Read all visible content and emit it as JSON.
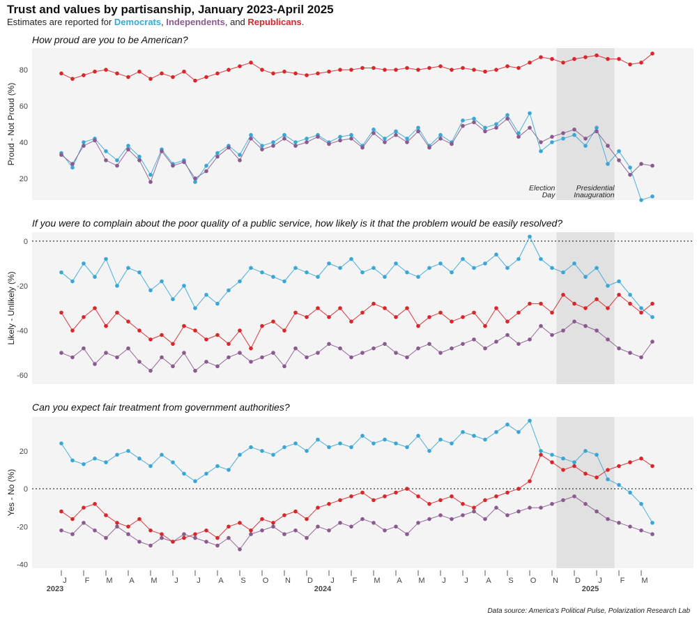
{
  "header": {
    "title": "Trust and values by partisanship, January 2023-April 2025",
    "subtitle_prefix": "Estimates are reported for ",
    "dem_label": "Democrats",
    "sep1": ", ",
    "ind_label": "Independents",
    "sep2": ", and ",
    "rep_label": "Republicans",
    "subtitle_suffix": "."
  },
  "colors": {
    "dem": "#3aa6d6",
    "ind": "#8a5a8e",
    "rep": "#d7262c",
    "panel_bg": "#f4f4f4",
    "shade": "#e1e1e1"
  },
  "source": "Data source: America's Political Pulse, Polarization Research Lab",
  "x_axis": {
    "months": [
      "J",
      "F",
      "M",
      "A",
      "M",
      "J",
      "J",
      "A",
      "S",
      "O",
      "N",
      "D",
      "J",
      "F",
      "M",
      "A",
      "M",
      "J",
      "J",
      "A",
      "S",
      "O",
      "N",
      "D",
      "J",
      "F",
      "M"
    ],
    "years": [
      "2023",
      "2024",
      "2025"
    ],
    "domain": [
      0,
      27.5
    ]
  },
  "annotations": {
    "election_line1": "Election",
    "election_line2": "Day",
    "inauguration_line1": "Presidential",
    "inauguration_line2": "Inauguration"
  },
  "chart_data": [
    {
      "type": "line",
      "title": "How proud are you to be American?",
      "ylabel": "Proud - Not Proud (%)",
      "ylim": [
        8,
        92
      ],
      "yticks": [
        20,
        40,
        60,
        80
      ],
      "zero_line": false,
      "shade_range": [
        22.2,
        24.8
      ],
      "x": [
        0.0,
        0.5,
        1.0,
        1.5,
        2.0,
        2.5,
        3.0,
        3.5,
        4.0,
        4.5,
        5.0,
        5.5,
        6.0,
        6.5,
        7.0,
        7.5,
        8.0,
        8.5,
        9.0,
        9.5,
        10.0,
        10.5,
        11.0,
        11.5,
        12.0,
        12.5,
        13.0,
        13.5,
        14.0,
        14.5,
        15.0,
        15.5,
        16.0,
        16.5,
        17.0,
        17.5,
        18.0,
        18.5,
        19.0,
        19.5,
        20.0,
        20.5,
        21.0,
        21.5,
        22.0,
        22.5,
        23.0,
        23.5,
        24.0,
        24.5,
        25.0,
        25.5,
        26.0,
        26.5
      ],
      "series": [
        {
          "name": "Democrats",
          "color": "#3aa6d6",
          "values": [
            34,
            26,
            40,
            42,
            35,
            30,
            38,
            32,
            22,
            36,
            28,
            30,
            18,
            27,
            34,
            38,
            33,
            44,
            38,
            40,
            44,
            40,
            42,
            44,
            40,
            43,
            44,
            38,
            47,
            42,
            46,
            42,
            48,
            38,
            44,
            40,
            52,
            53,
            48,
            50,
            55,
            45,
            56,
            35,
            40,
            42,
            44,
            38,
            48,
            28,
            35,
            26,
            8,
            10
          ]
        },
        {
          "name": "Independents",
          "color": "#8a5a8e",
          "values": [
            33,
            28,
            38,
            41,
            30,
            27,
            36,
            30,
            18,
            35,
            27,
            29,
            20,
            24,
            32,
            37,
            30,
            42,
            36,
            38,
            42,
            38,
            40,
            43,
            39,
            41,
            42,
            37,
            45,
            40,
            44,
            40,
            46,
            37,
            42,
            39,
            49,
            51,
            46,
            48,
            53,
            43,
            48,
            40,
            43,
            45,
            47,
            42,
            46,
            38,
            30,
            22,
            28,
            27
          ]
        },
        {
          "name": "Republicans",
          "color": "#d7262c",
          "values": [
            78,
            75,
            77,
            79,
            80,
            78,
            76,
            79,
            75,
            78,
            76,
            79,
            74,
            76,
            78,
            80,
            82,
            84,
            80,
            78,
            79,
            78,
            77,
            78,
            79,
            80,
            80,
            81,
            81,
            80,
            80,
            81,
            80,
            81,
            82,
            80,
            81,
            80,
            79,
            80,
            82,
            81,
            84,
            87,
            86,
            84,
            86,
            87,
            88,
            86,
            86,
            83,
            84,
            89
          ]
        }
      ]
    },
    {
      "type": "line",
      "title": "If you were to complain about the poor quality of a public service, how likely is it that the problem would be easily resolved?",
      "ylabel": "Likely - Unlikely (%)",
      "ylim": [
        -64,
        4
      ],
      "yticks": [
        0,
        -20,
        -40,
        -60
      ],
      "zero_line": true,
      "shade_range": [
        22.2,
        24.8
      ],
      "x": [
        0.0,
        0.5,
        1.0,
        1.5,
        2.0,
        2.5,
        3.0,
        3.5,
        4.0,
        4.5,
        5.0,
        5.5,
        6.0,
        6.5,
        7.0,
        7.5,
        8.0,
        8.5,
        9.0,
        9.5,
        10.0,
        10.5,
        11.0,
        11.5,
        12.0,
        12.5,
        13.0,
        13.5,
        14.0,
        14.5,
        15.0,
        15.5,
        16.0,
        16.5,
        17.0,
        17.5,
        18.0,
        18.5,
        19.0,
        19.5,
        20.0,
        20.5,
        21.0,
        21.5,
        22.0,
        22.5,
        23.0,
        23.5,
        24.0,
        24.5,
        25.0,
        25.5,
        26.0,
        26.5
      ],
      "series": [
        {
          "name": "Democrats",
          "color": "#3aa6d6",
          "values": [
            -14,
            -18,
            -10,
            -16,
            -8,
            -20,
            -12,
            -14,
            -22,
            -18,
            -26,
            -20,
            -30,
            -24,
            -28,
            -22,
            -18,
            -12,
            -14,
            -16,
            -18,
            -12,
            -14,
            -16,
            -10,
            -12,
            -8,
            -14,
            -12,
            -16,
            -10,
            -14,
            -16,
            -12,
            -10,
            -14,
            -8,
            -12,
            -10,
            -6,
            -12,
            -8,
            2,
            -8,
            -12,
            -14,
            -10,
            -16,
            -12,
            -20,
            -18,
            -24,
            -30,
            -34
          ]
        },
        {
          "name": "Independents",
          "color": "#8a5a8e",
          "values": [
            -50,
            -52,
            -48,
            -55,
            -50,
            -52,
            -48,
            -54,
            -58,
            -52,
            -56,
            -50,
            -58,
            -54,
            -56,
            -52,
            -50,
            -54,
            -52,
            -50,
            -56,
            -48,
            -52,
            -50,
            -46,
            -48,
            -52,
            -50,
            -48,
            -46,
            -50,
            -52,
            -48,
            -46,
            -50,
            -48,
            -46,
            -44,
            -48,
            -45,
            -42,
            -46,
            -44,
            -38,
            -42,
            -40,
            -36,
            -38,
            -40,
            -44,
            -48,
            -50,
            -52,
            -45
          ]
        },
        {
          "name": "Republicans",
          "color": "#d7262c",
          "values": [
            -32,
            -40,
            -34,
            -30,
            -38,
            -32,
            -36,
            -40,
            -44,
            -42,
            -46,
            -38,
            -40,
            -44,
            -42,
            -46,
            -40,
            -48,
            -38,
            -36,
            -40,
            -32,
            -34,
            -30,
            -34,
            -30,
            -36,
            -32,
            -28,
            -30,
            -34,
            -30,
            -38,
            -34,
            -32,
            -36,
            -34,
            -32,
            -38,
            -30,
            -36,
            -32,
            -28,
            -28,
            -32,
            -24,
            -28,
            -30,
            -26,
            -30,
            -24,
            -28,
            -32,
            -28
          ]
        }
      ]
    },
    {
      "type": "line",
      "title": "Can you expect fair treatment from government authorities?",
      "ylabel": "Yes - No (%)",
      "ylim": [
        -42,
        38
      ],
      "yticks": [
        20,
        0,
        -20,
        -40
      ],
      "zero_line": true,
      "shade_range": [
        22.2,
        24.8
      ],
      "x": [
        0.0,
        0.5,
        1.0,
        1.5,
        2.0,
        2.5,
        3.0,
        3.5,
        4.0,
        4.5,
        5.0,
        5.5,
        6.0,
        6.5,
        7.0,
        7.5,
        8.0,
        8.5,
        9.0,
        9.5,
        10.0,
        10.5,
        11.0,
        11.5,
        12.0,
        12.5,
        13.0,
        13.5,
        14.0,
        14.5,
        15.0,
        15.5,
        16.0,
        16.5,
        17.0,
        17.5,
        18.0,
        18.5,
        19.0,
        19.5,
        20.0,
        20.5,
        21.0,
        21.5,
        22.0,
        22.5,
        23.0,
        23.5,
        24.0,
        24.5,
        25.0,
        25.5,
        26.0,
        26.5
      ],
      "series": [
        {
          "name": "Democrats",
          "color": "#3aa6d6",
          "values": [
            24,
            15,
            13,
            16,
            14,
            18,
            20,
            16,
            12,
            18,
            14,
            8,
            4,
            8,
            12,
            10,
            18,
            22,
            20,
            18,
            22,
            24,
            20,
            26,
            22,
            24,
            22,
            28,
            24,
            26,
            24,
            22,
            28,
            20,
            26,
            24,
            30,
            28,
            26,
            30,
            34,
            30,
            36,
            20,
            18,
            16,
            14,
            20,
            18,
            5,
            2,
            -2,
            -8,
            -18
          ]
        },
        {
          "name": "Independents",
          "color": "#8a5a8e",
          "values": [
            -22,
            -24,
            -18,
            -22,
            -26,
            -20,
            -24,
            -28,
            -30,
            -26,
            -28,
            -24,
            -26,
            -28,
            -30,
            -26,
            -32,
            -24,
            -22,
            -20,
            -24,
            -22,
            -26,
            -20,
            -22,
            -18,
            -20,
            -16,
            -18,
            -22,
            -20,
            -24,
            -18,
            -16,
            -14,
            -16,
            -14,
            -12,
            -16,
            -10,
            -14,
            -12,
            -10,
            -10,
            -8,
            -6,
            -4,
            -8,
            -12,
            -16,
            -18,
            -20,
            -22,
            -24
          ]
        },
        {
          "name": "Republicans",
          "color": "#d7262c",
          "values": [
            -12,
            -16,
            -10,
            -8,
            -14,
            -18,
            -20,
            -16,
            -22,
            -24,
            -28,
            -26,
            -24,
            -22,
            -26,
            -20,
            -18,
            -22,
            -16,
            -18,
            -14,
            -12,
            -16,
            -10,
            -8,
            -6,
            -4,
            -2,
            -6,
            -4,
            -2,
            0,
            -4,
            -8,
            -6,
            -4,
            -8,
            -10,
            -6,
            -4,
            -2,
            0,
            4,
            18,
            14,
            10,
            12,
            8,
            6,
            10,
            12,
            14,
            16,
            12
          ]
        }
      ]
    }
  ]
}
